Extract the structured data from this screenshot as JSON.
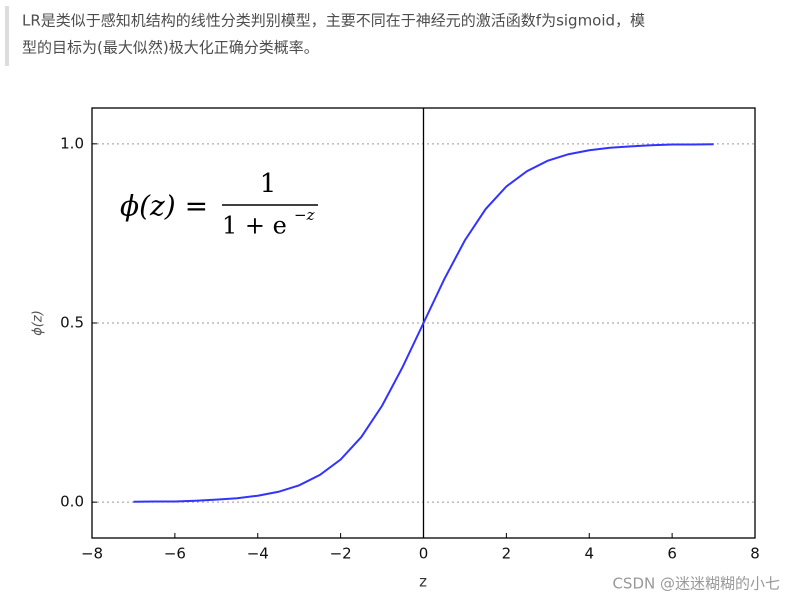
{
  "quote": {
    "lines": [
      "LR是类似于感知机结构的线性分类判别模型，主要不同在于神经元的激活函数f为sigmoid，模",
      "型的目标为(最大似然)极大化正确分类概率。"
    ]
  },
  "chart_data": {
    "type": "line",
    "x_label": "z",
    "y_label": "ϕ(z)",
    "formula": {
      "lhs": "ϕ(z) =",
      "numerator": "1",
      "denominator": "1 + e",
      "exponent": "−z"
    },
    "x": [
      -7,
      -6.5,
      -6,
      -5.5,
      -5,
      -4.5,
      -4,
      -3.5,
      -3,
      -2.5,
      -2,
      -1.5,
      -1,
      -0.5,
      0,
      0.5,
      1,
      1.5,
      2,
      2.5,
      3,
      3.5,
      4,
      4.5,
      5,
      5.5,
      6,
      6.5,
      7
    ],
    "series": [
      {
        "name": "sigmoid",
        "color": "#3333ff",
        "values": [
          0.001,
          0.002,
          0.002,
          0.004,
          0.007,
          0.011,
          0.018,
          0.029,
          0.047,
          0.076,
          0.119,
          0.182,
          0.269,
          0.378,
          0.5,
          0.622,
          0.731,
          0.818,
          0.881,
          0.924,
          0.953,
          0.971,
          0.982,
          0.989,
          0.993,
          0.996,
          0.998,
          0.998,
          0.999
        ]
      }
    ],
    "vline": 0,
    "xlim": [
      -8,
      8
    ],
    "xticks": [
      {
        "value": -8,
        "label": "−8"
      },
      {
        "value": -6,
        "label": "−6"
      },
      {
        "value": -4,
        "label": "−4"
      },
      {
        "value": -2,
        "label": "−2"
      },
      0,
      2,
      4,
      6,
      8
    ],
    "ylim": [
      -0.1,
      1.1
    ],
    "yticks": [
      {
        "value": 0,
        "label": "0.0"
      },
      0.5,
      {
        "value": 1,
        "label": "1.0"
      }
    ],
    "grid": true
  },
  "watermark": "CSDN @迷迷糊糊的小七"
}
